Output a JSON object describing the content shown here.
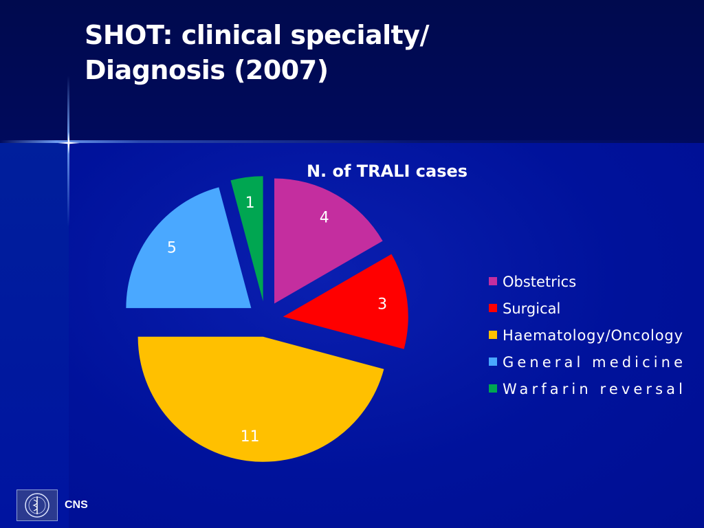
{
  "slide": {
    "title_line1": "SHOT: clinical specialty/",
    "title_line2": "Diagnosis (2007)",
    "footer_label": "CNS"
  },
  "chart_data": {
    "type": "pie",
    "title": "N. of TRALI cases",
    "exploded": true,
    "legend_position": "right",
    "categories": [
      "Obstetrics",
      "Surgical",
      "Haematology/Oncology",
      "General medicine",
      "Warfarin reversal"
    ],
    "values": [
      4,
      3,
      11,
      5,
      1
    ],
    "colors": [
      "#c42e9f",
      "#ff0000",
      "#ffc000",
      "#4aa8ff",
      "#00a651"
    ]
  },
  "icons": {
    "logo": "institute-seal-icon",
    "sparkle": "sparkle-star-icon"
  }
}
